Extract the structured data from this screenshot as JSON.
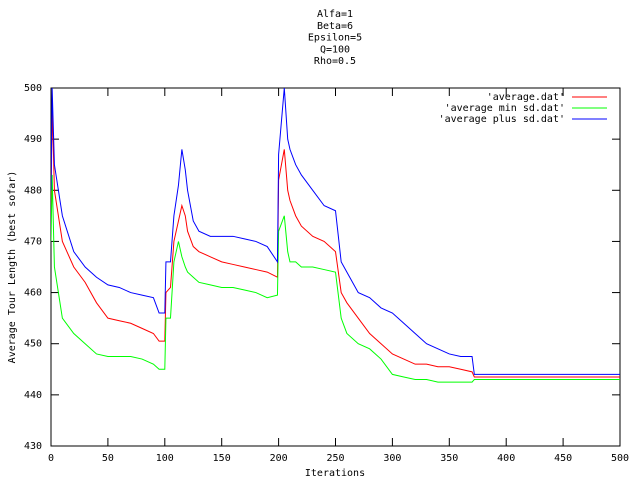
{
  "chart_data": {
    "type": "line",
    "title": [
      "Alfa=1",
      "Beta=6",
      "Epsilon=5",
      "Q=100",
      "Rho=0.5"
    ],
    "x_label": "Iterations",
    "y_label": "Average Tour Length (best sofar)",
    "x": [
      0,
      1,
      3,
      10,
      20,
      30,
      40,
      50,
      60,
      70,
      80,
      90,
      95,
      100,
      101,
      105,
      108,
      112,
      115,
      118,
      120,
      125,
      130,
      140,
      150,
      160,
      170,
      180,
      190,
      199,
      200,
      205,
      208,
      210,
      215,
      220,
      230,
      240,
      250,
      255,
      260,
      270,
      280,
      290,
      300,
      310,
      320,
      330,
      340,
      350,
      360,
      370,
      372,
      400,
      450,
      500
    ],
    "series": [
      {
        "name": "'average.dat'",
        "color": "#ff0000",
        "values": [
          475,
          497,
          480,
          470,
          465,
          462,
          458,
          455,
          454.5,
          454,
          453,
          452,
          450.5,
          450.5,
          460,
          461,
          470,
          474,
          477,
          475,
          472,
          469,
          468,
          467,
          466,
          465.5,
          465,
          464.5,
          464,
          463,
          482,
          488,
          480,
          478,
          475,
          473,
          471,
          470,
          468,
          460,
          458,
          455,
          452,
          450,
          448,
          447,
          446,
          446,
          445.5,
          445.5,
          445,
          444.5,
          443.5,
          443.5,
          443.5,
          443.5
        ]
      },
      {
        "name": "'average min sd.dat'",
        "color": "#00ff00",
        "values": [
          470,
          483,
          465,
          455,
          452,
          450,
          448,
          447.5,
          447.5,
          447.5,
          447,
          446,
          445,
          445,
          455,
          455,
          466,
          470,
          467,
          465,
          464,
          463,
          462,
          461.5,
          461,
          461,
          460.5,
          460,
          459,
          459.5,
          472,
          475,
          468,
          466,
          466,
          465,
          465,
          464.5,
          464,
          455,
          452,
          450,
          449,
          447,
          444,
          443.5,
          443,
          443,
          442.5,
          442.5,
          442.5,
          442.5,
          443,
          443,
          443,
          443
        ]
      },
      {
        "name": "'average plus sd.dat'",
        "color": "#0000ff",
        "values": [
          480,
          500,
          485,
          475,
          468,
          465,
          463,
          461.5,
          461,
          460,
          459.5,
          459,
          456,
          456,
          466,
          466,
          475,
          481,
          488,
          484,
          480,
          474,
          472,
          471,
          471,
          471,
          470.5,
          470,
          469,
          466,
          487,
          500,
          490,
          488,
          485,
          483,
          480,
          477,
          476,
          466,
          464,
          460,
          459,
          457,
          456,
          454,
          452,
          450,
          449,
          448,
          447.5,
          447.5,
          444,
          444,
          444,
          444
        ]
      }
    ],
    "xlim": [
      0,
      500
    ],
    "xticks": [
      0,
      50,
      100,
      150,
      200,
      250,
      300,
      350,
      400,
      450,
      500
    ],
    "ylim": [
      430,
      500
    ],
    "yticks": [
      430,
      440,
      450,
      460,
      470,
      480,
      490,
      500
    ],
    "grid": false,
    "legend": "top-right"
  }
}
